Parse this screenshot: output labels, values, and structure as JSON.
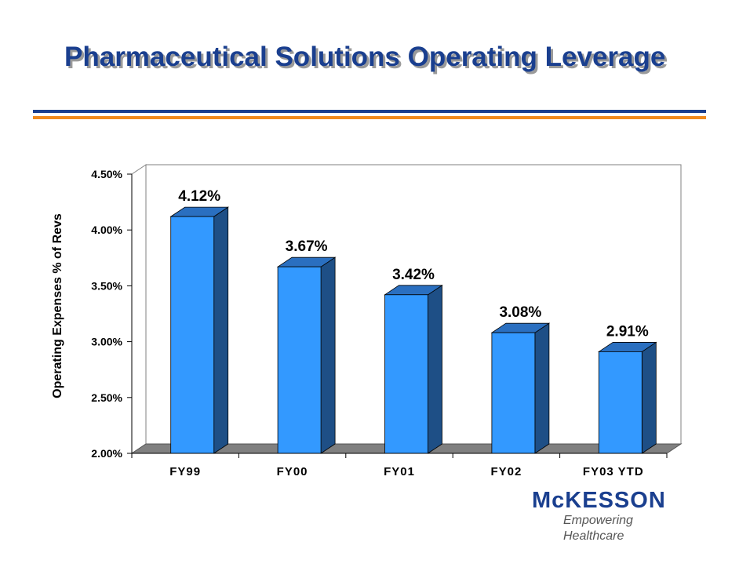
{
  "title": "Pharmaceutical Solutions Operating Leverage",
  "logo": {
    "name": "McKESSON",
    "tagline": "Empowering Healthcare"
  },
  "colors": {
    "title": "#1a3f8f",
    "accent_orange": "#f08a1e",
    "bar_front": "#3399ff",
    "bar_side": "#1e4f86",
    "bar_top": "#2a6fc0"
  },
  "chart_data": {
    "type": "bar",
    "categories": [
      "FY99",
      "FY00",
      "FY01",
      "FY02",
      "FY03 YTD"
    ],
    "values": [
      4.12,
      3.67,
      3.42,
      3.08,
      2.91
    ],
    "value_labels": [
      "4.12%",
      "3.67%",
      "3.42%",
      "3.08%",
      "2.91%"
    ],
    "ylabel": "Operating Expenses % of Revs",
    "xlabel": "",
    "ylim": [
      2.0,
      4.5
    ],
    "yticks": [
      2.0,
      2.5,
      3.0,
      3.5,
      4.0,
      4.5
    ],
    "ytick_labels": [
      "2.00%",
      "2.50%",
      "3.00%",
      "3.50%",
      "4.00%",
      "4.50%"
    ],
    "grid": false,
    "legend": "none",
    "style": "3d"
  }
}
